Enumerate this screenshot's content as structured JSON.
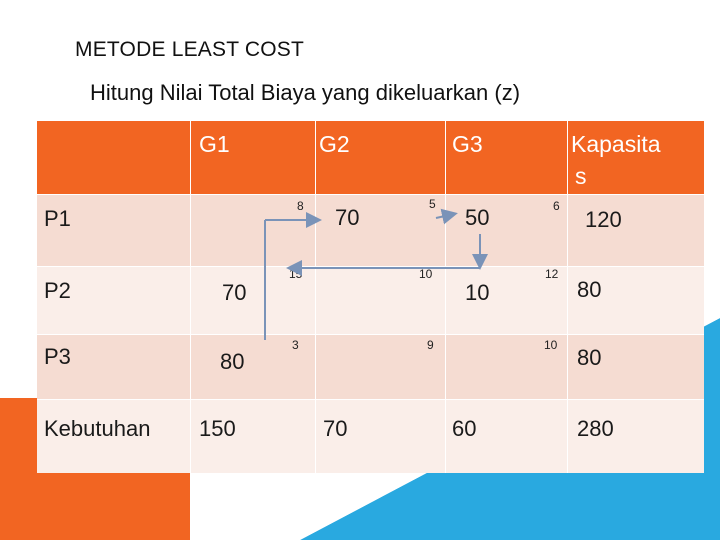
{
  "title": "METODE LEAST COST",
  "subtitle": "Hitung Nilai Total Biaya yang dikeluarkan (z)",
  "table": {
    "columns": [
      "G1",
      "G2",
      "G3"
    ],
    "capacity_header_line1": "Kapasita",
    "capacity_header_line2": "s",
    "rows": [
      {
        "label": "P1",
        "costs": [
          "8",
          "5",
          "6"
        ],
        "allocations": [
          "",
          "70",
          "50"
        ],
        "capacity": "120"
      },
      {
        "label": "P2",
        "costs": [
          "15",
          "10",
          "12"
        ],
        "allocations": [
          "70",
          "",
          "10"
        ],
        "capacity": "80"
      },
      {
        "label": "P3",
        "costs": [
          "3",
          "9",
          "10"
        ],
        "allocations": [
          "80",
          "",
          ""
        ],
        "capacity": "80"
      }
    ],
    "demand_label": "Kebutuhan",
    "demand": [
      "150",
      "70",
      "60"
    ],
    "total": "280"
  },
  "colors": {
    "header": "#f26522",
    "row_band": "#f5dcd2",
    "row_band_alt": "#faeee9",
    "accent_blue": "#29a9e0",
    "arrow": "#7a93b8"
  }
}
